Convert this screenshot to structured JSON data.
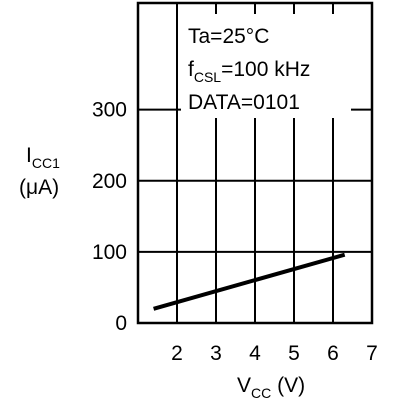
{
  "chart_data": {
    "type": "line",
    "x": [
      1.4,
      6.3
    ],
    "series": [
      {
        "values": [
          20,
          96
        ]
      }
    ],
    "xlim": [
      1,
      7
    ],
    "ylim": [
      0,
      450
    ],
    "x_ticks": [
      "2",
      "3",
      "4",
      "5",
      "6",
      "7"
    ],
    "y_ticks": [
      "0",
      "100",
      "200",
      "300"
    ],
    "ylabel": {
      "main": "I",
      "sub": "CC1",
      "unit": "(μA)"
    },
    "xlabel": {
      "main": "V",
      "sub": "CC",
      "unit": " (V)"
    },
    "annotations": {
      "ta": "Ta=25°C",
      "fcsl_main": "f",
      "fcsl_sub": "CSL",
      "fcsl_value": "=100 kHz",
      "data": "DATA=0101"
    },
    "grid": true,
    "line_color": "#000000"
  }
}
